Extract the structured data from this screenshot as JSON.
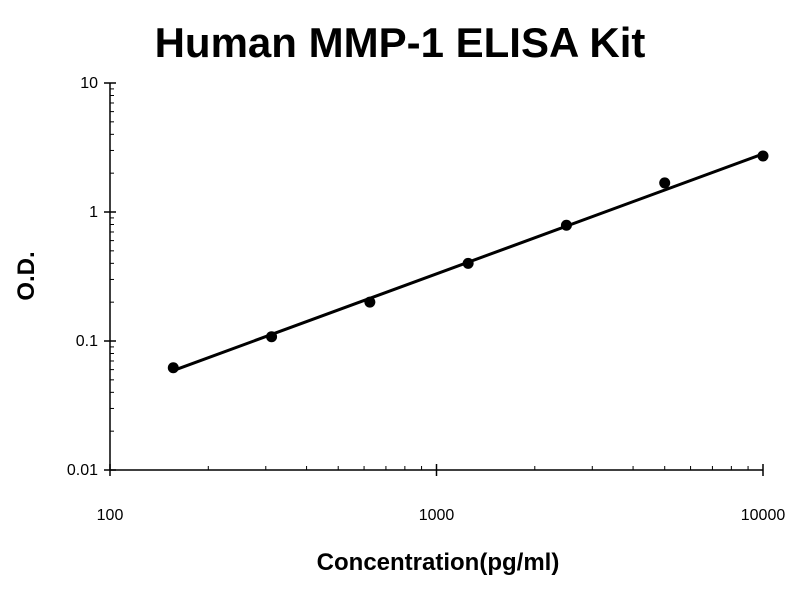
{
  "chart_data": {
    "type": "scatter",
    "title": "Human MMP-1 ELISA Kit",
    "xlabel": "Concentration(pg/ml)",
    "ylabel": "O.D.",
    "xscale": "log",
    "yscale": "log",
    "xlim": [
      100,
      10000
    ],
    "ylim": [
      0.01,
      10
    ],
    "x_ticks": [
      100,
      1000,
      10000
    ],
    "x_tick_labels": [
      "100",
      "1000",
      "10000"
    ],
    "y_ticks": [
      0.01,
      0.1,
      1,
      10
    ],
    "y_tick_labels": [
      "0.01",
      "0.1",
      "1",
      "10"
    ],
    "grid": false,
    "legend": "none",
    "series": [
      {
        "x": [
          156.25,
          312.5,
          625,
          1250,
          2500,
          5000,
          10000
        ],
        "y": [
          0.062,
          0.108,
          0.2,
          0.4,
          0.79,
          1.68,
          2.72
        ]
      }
    ],
    "trendline": {
      "type": "power",
      "x": [
        156.25,
        10000
      ],
      "y": [
        0.059,
        2.82
      ]
    },
    "colors": {
      "marker": "#000000",
      "line": "#000000",
      "axis": "#000000",
      "background": "#ffffff"
    }
  }
}
